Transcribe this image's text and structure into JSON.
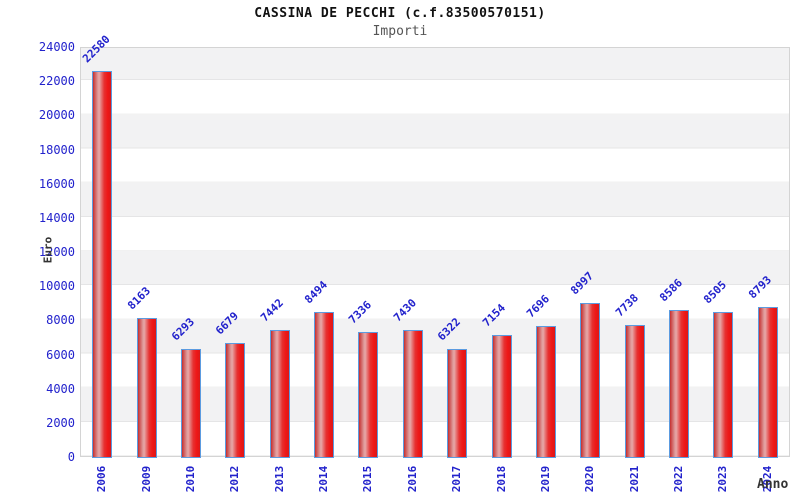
{
  "header": {
    "title": "CASSINA DE PECCHI (c.f.83500570151)",
    "subtitle": "Importi"
  },
  "chart_data": {
    "type": "bar",
    "title": "CASSINA DE PECCHI (c.f.83500570151)",
    "subtitle": "Importi",
    "xlabel": "Anno",
    "ylabel": "Euro",
    "categories": [
      "2006",
      "2009",
      "2010",
      "2012",
      "2013",
      "2014",
      "2015",
      "2016",
      "2017",
      "2018",
      "2019",
      "2020",
      "2021",
      "2022",
      "2023",
      "2024"
    ],
    "values": [
      22580,
      8163,
      6293,
      6679,
      7442,
      8494,
      7336,
      7430,
      6322,
      7154,
      7696,
      8997,
      7738,
      8586,
      8505,
      8793
    ],
    "ylim": [
      0,
      24000
    ],
    "ytick_step": 2000,
    "grid": "horizontal-bands",
    "legend": "none"
  },
  "colors": {
    "label_blue": "#2222cc",
    "bar_border_blue": "#5b9be0",
    "bar_red_dark": "#c62f2f",
    "bar_red_light": "#e7a8a8",
    "bar_red_bright": "#ee1717",
    "band_gray": "#f2f2f3",
    "band_white": "#ffffff",
    "plot_border": "#d4d4d4",
    "axis_title_color": "#333333",
    "subtitle_color": "#555555",
    "title_color": "#111111"
  }
}
